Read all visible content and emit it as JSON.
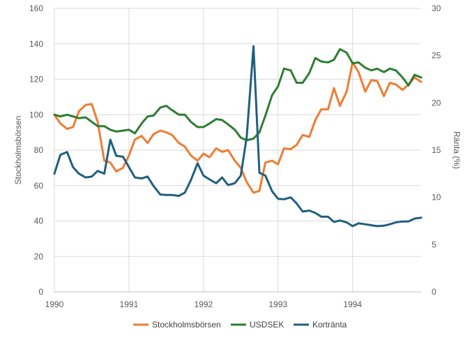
{
  "chart_data": {
    "type": "line",
    "xlabel": "",
    "ylabel_left": "Stockholmsbörsen",
    "ylabel_right": "Ränta (%)",
    "xlim": [
      1990,
      1994.92
    ],
    "x_ticks": [
      1990,
      1991,
      1992,
      1993,
      1994
    ],
    "ylim_left": [
      0,
      160
    ],
    "yticks_left": [
      0,
      20,
      40,
      60,
      80,
      100,
      120,
      140,
      160
    ],
    "ylim_right": [
      0,
      30
    ],
    "yticks_right": [
      0,
      5,
      10,
      15,
      20,
      25,
      30
    ],
    "grid": true,
    "legend_position": "bottom",
    "series": [
      {
        "name": "Stockholmsbörsen",
        "axis": "left",
        "color": "#ED7D31",
        "x": [
          1990.0,
          1990.08,
          1990.17,
          1990.25,
          1990.33,
          1990.42,
          1990.5,
          1990.58,
          1990.67,
          1990.75,
          1990.83,
          1990.92,
          1991.0,
          1991.08,
          1991.17,
          1991.25,
          1991.33,
          1991.42,
          1991.5,
          1991.58,
          1991.67,
          1991.75,
          1991.83,
          1991.92,
          1992.0,
          1992.08,
          1992.17,
          1992.25,
          1992.33,
          1992.42,
          1992.5,
          1992.58,
          1992.67,
          1992.75,
          1992.83,
          1992.92,
          1993.0,
          1993.08,
          1993.17,
          1993.25,
          1993.33,
          1993.42,
          1993.5,
          1993.58,
          1993.67,
          1993.75,
          1993.83,
          1993.92,
          1994.0,
          1994.08,
          1994.17,
          1994.25,
          1994.33,
          1994.42,
          1994.5,
          1994.58,
          1994.67,
          1994.75,
          1994.83,
          1994.92
        ],
        "values": [
          100,
          95,
          92,
          93,
          102,
          105.5,
          106,
          96,
          74,
          73,
          68,
          70,
          77,
          86,
          88,
          84,
          89,
          91,
          90,
          88.5,
          84,
          82,
          77,
          74,
          78,
          76,
          81,
          79,
          80,
          74,
          70,
          62,
          56,
          57,
          73,
          74,
          72,
          81,
          80.5,
          83,
          88.5,
          87.5,
          97,
          103,
          103,
          115,
          105,
          113,
          129.5,
          124,
          113,
          119.5,
          119,
          110.5,
          118,
          117,
          114,
          117,
          121,
          118.5
        ]
      },
      {
        "name": "USDSEK",
        "axis": "left",
        "color": "#2E7D32",
        "x": [
          1990.0,
          1990.08,
          1990.17,
          1990.25,
          1990.33,
          1990.42,
          1990.5,
          1990.58,
          1990.67,
          1990.75,
          1990.83,
          1990.92,
          1991.0,
          1991.08,
          1991.17,
          1991.25,
          1991.33,
          1991.42,
          1991.5,
          1991.58,
          1991.67,
          1991.75,
          1991.83,
          1991.92,
          1992.0,
          1992.08,
          1992.17,
          1992.25,
          1992.33,
          1992.42,
          1992.5,
          1992.58,
          1992.67,
          1992.75,
          1992.83,
          1992.92,
          1993.0,
          1993.08,
          1993.17,
          1993.25,
          1993.33,
          1993.42,
          1993.5,
          1993.58,
          1993.67,
          1993.75,
          1993.83,
          1993.92,
          1994.0,
          1994.08,
          1994.17,
          1994.25,
          1994.33,
          1994.42,
          1994.5,
          1994.58,
          1994.67,
          1994.75,
          1994.83,
          1994.92
        ],
        "values": [
          100,
          99,
          100,
          99,
          98,
          98.5,
          96,
          93.5,
          93.5,
          91.5,
          90.5,
          91,
          91.5,
          89.5,
          95,
          99,
          99.5,
          104,
          105,
          102.5,
          100,
          100,
          96,
          93,
          93,
          95,
          97.5,
          97,
          94.5,
          91.5,
          87,
          85.5,
          86.5,
          90,
          99.5,
          111,
          116,
          126,
          125,
          118,
          118,
          123.5,
          132,
          130,
          129.5,
          131,
          137,
          135,
          129,
          129.5,
          126.5,
          125,
          126,
          124,
          126,
          125,
          121,
          116.5,
          122.5,
          121
        ]
      },
      {
        "name": "Kortränta",
        "axis": "right",
        "color": "#1F5F7F",
        "x": [
          1990.0,
          1990.08,
          1990.17,
          1990.25,
          1990.33,
          1990.42,
          1990.5,
          1990.58,
          1990.67,
          1990.75,
          1990.83,
          1990.92,
          1991.0,
          1991.08,
          1991.17,
          1991.25,
          1991.33,
          1991.42,
          1991.5,
          1991.58,
          1991.67,
          1991.75,
          1991.83,
          1991.92,
          1992.0,
          1992.08,
          1992.17,
          1992.25,
          1992.33,
          1992.42,
          1992.5,
          1992.58,
          1992.67,
          1992.75,
          1992.83,
          1992.92,
          1993.0,
          1993.08,
          1993.17,
          1993.25,
          1993.33,
          1993.42,
          1993.5,
          1993.58,
          1993.67,
          1993.75,
          1993.83,
          1993.92,
          1994.0,
          1994.08,
          1994.17,
          1994.25,
          1994.33,
          1994.42,
          1994.5,
          1994.58,
          1994.67,
          1994.75,
          1994.83,
          1994.92
        ],
        "values": [
          12.5,
          14.5,
          14.8,
          13.2,
          12.5,
          12.1,
          12.2,
          12.8,
          12.5,
          16.1,
          14.4,
          14.3,
          13.2,
          12.1,
          12.0,
          12.2,
          11.2,
          10.3,
          10.25,
          10.25,
          10.15,
          10.5,
          11.8,
          13.6,
          12.3,
          11.9,
          11.5,
          12.1,
          11.3,
          11.5,
          12.3,
          16.4,
          26.0,
          12.6,
          12.3,
          10.65,
          9.85,
          9.8,
          10.0,
          9.35,
          8.5,
          8.6,
          8.35,
          7.95,
          7.95,
          7.4,
          7.55,
          7.35,
          6.95,
          7.25,
          7.15,
          7.05,
          6.95,
          7.0,
          7.15,
          7.35,
          7.45,
          7.45,
          7.75,
          7.85
        ]
      }
    ]
  }
}
